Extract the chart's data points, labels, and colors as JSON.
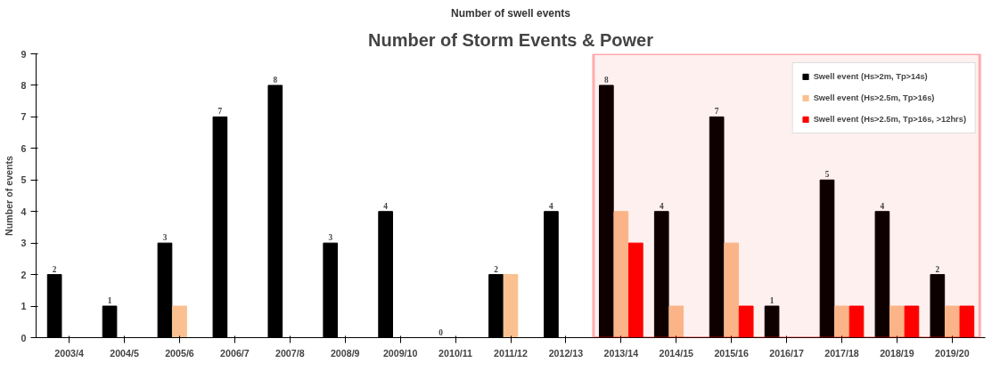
{
  "chart_data": {
    "type": "bar",
    "title": "Number of Storm Events & Power",
    "subtitle": "Number of swell events",
    "ylabel": "Number of events",
    "categories": [
      "2003/4",
      "2004/5",
      "2005/6",
      "2006/7",
      "2007/8",
      "2008/9",
      "2009/10",
      "2010/11",
      "2011/12",
      "2012/13",
      "2013/14",
      "2014/15",
      "2015/16",
      "2016/17",
      "2017/18",
      "2018/19",
      "2019/20"
    ],
    "series": [
      {
        "name": "Swell event (Hs>2m, Tp>14s)",
        "color": "#000000",
        "values": [
          2,
          1,
          3,
          7,
          8,
          3,
          4,
          0,
          2,
          4,
          8,
          4,
          7,
          1,
          5,
          4,
          2
        ],
        "value_labels": [
          "2",
          "1",
          "3",
          "7",
          "8",
          "3",
          "4",
          "0",
          "2",
          "4",
          "8",
          "4",
          "7",
          "1",
          "5",
          "4",
          "2"
        ]
      },
      {
        "name": "Swell event (Hs>2.5m, Tp>16s)",
        "color": "#fac090",
        "values": [
          0,
          0,
          1,
          0,
          0,
          0,
          0,
          0,
          2,
          0,
          4,
          1,
          3,
          0,
          1,
          1,
          1
        ]
      },
      {
        "name": "Swell event (Hs>2.5m, Tp>16s, >12hrs)",
        "color": "#ff0000",
        "values": [
          0,
          0,
          0,
          0,
          0,
          0,
          0,
          0,
          0,
          0,
          3,
          0,
          1,
          0,
          1,
          1,
          1
        ]
      }
    ],
    "ylim": [
      0,
      9
    ],
    "yticks": [
      0,
      1,
      2,
      3,
      4,
      5,
      6,
      7,
      8,
      9
    ],
    "grid": false,
    "legend": "top right",
    "bands": [
      {
        "axis": "x",
        "from": "2013/14",
        "to": "2019/20",
        "color": "#ff0000"
      }
    ]
  }
}
